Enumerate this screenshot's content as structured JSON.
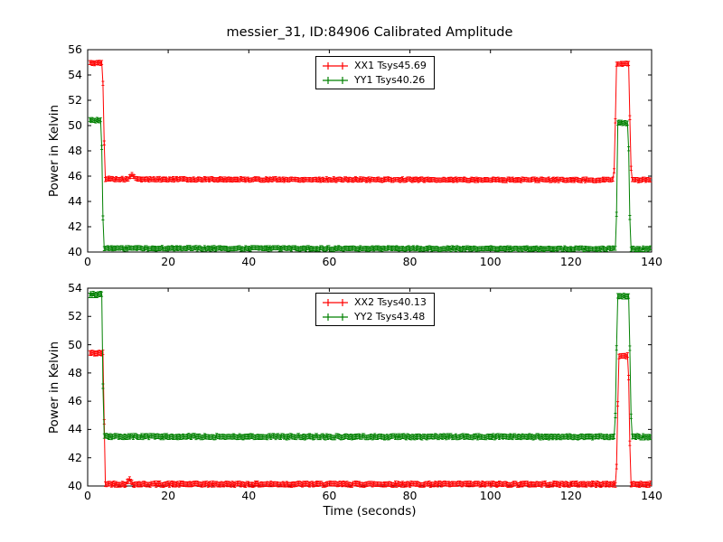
{
  "figure": {
    "background": "#ffffff",
    "frame_color": "#000000"
  },
  "chart_data": [
    {
      "type": "line",
      "title": "messier_31, ID:84906 Calibrated Amplitude",
      "xlabel": "",
      "ylabel": "Power in Kelvin",
      "xlim": [
        0,
        140
      ],
      "ylim": [
        40,
        56
      ],
      "xticks": [
        0,
        20,
        40,
        60,
        80,
        100,
        120,
        140
      ],
      "yticks": [
        40,
        42,
        44,
        46,
        48,
        50,
        52,
        54,
        56
      ],
      "grid": false,
      "legend_position": "upper center",
      "series": [
        {
          "name": "XX1 Tsys45.69",
          "color": "#ff0000",
          "style": "errorbar",
          "noise": 0.07,
          "errorbar": 0.16,
          "keypoints": [
            [
              0.5,
              54.95
            ],
            [
              3.7,
              54.95
            ],
            [
              4.0,
              50.0
            ],
            [
              4.3,
              45.8
            ],
            [
              9.2,
              45.75
            ],
            [
              10.2,
              45.8
            ],
            [
              11.0,
              46.15
            ],
            [
              12.0,
              45.75
            ],
            [
              130.6,
              45.7
            ],
            [
              130.9,
              48.0
            ],
            [
              131.2,
              54.9
            ],
            [
              134.4,
              54.9
            ],
            [
              134.7,
              48.5
            ],
            [
              135.0,
              45.7
            ],
            [
              139.8,
              45.7
            ]
          ]
        },
        {
          "name": "YY1 Tsys40.26",
          "color": "#008000",
          "style": "errorbar",
          "noise": 0.07,
          "errorbar": 0.16,
          "keypoints": [
            [
              0.5,
              50.45
            ],
            [
              3.4,
              50.4
            ],
            [
              3.7,
              44.0
            ],
            [
              4.0,
              40.3
            ],
            [
              131.0,
              40.26
            ],
            [
              131.3,
              43.0
            ],
            [
              131.6,
              50.2
            ],
            [
              134.2,
              50.2
            ],
            [
              134.5,
              44.0
            ],
            [
              134.8,
              40.26
            ],
            [
              139.8,
              40.26
            ]
          ]
        }
      ]
    },
    {
      "type": "line",
      "title": "",
      "xlabel": "Time (seconds)",
      "ylabel": "Power in Kelvin",
      "xlim": [
        0,
        140
      ],
      "ylim": [
        40,
        54
      ],
      "xticks": [
        0,
        20,
        40,
        60,
        80,
        100,
        120,
        140
      ],
      "yticks": [
        40,
        42,
        44,
        46,
        48,
        50,
        52,
        54
      ],
      "grid": false,
      "legend_position": "upper center",
      "series": [
        {
          "name": "XX2 Tsys40.13",
          "color": "#ff0000",
          "style": "errorbar",
          "noise": 0.07,
          "errorbar": 0.16,
          "keypoints": [
            [
              0.5,
              49.4
            ],
            [
              3.8,
              49.4
            ],
            [
              4.1,
              44.5
            ],
            [
              4.4,
              40.15
            ],
            [
              9.4,
              40.13
            ],
            [
              10.4,
              40.45
            ],
            [
              11.4,
              40.13
            ],
            [
              131.2,
              40.13
            ],
            [
              131.5,
              44.0
            ],
            [
              131.8,
              49.2
            ],
            [
              134.2,
              49.2
            ],
            [
              134.5,
              44.5
            ],
            [
              134.8,
              40.13
            ],
            [
              139.8,
              40.13
            ]
          ]
        },
        {
          "name": "YY2 Tsys43.48",
          "color": "#008000",
          "style": "errorbar",
          "noise": 0.07,
          "errorbar": 0.16,
          "keypoints": [
            [
              0.5,
              53.55
            ],
            [
              3.5,
              53.55
            ],
            [
              3.8,
              47.0
            ],
            [
              4.1,
              43.5
            ],
            [
              130.9,
              43.48
            ],
            [
              131.2,
              48.0
            ],
            [
              131.5,
              53.45
            ],
            [
              134.4,
              53.45
            ],
            [
              134.7,
              48.0
            ],
            [
              135.0,
              43.48
            ],
            [
              139.8,
              43.48
            ]
          ]
        }
      ]
    }
  ]
}
